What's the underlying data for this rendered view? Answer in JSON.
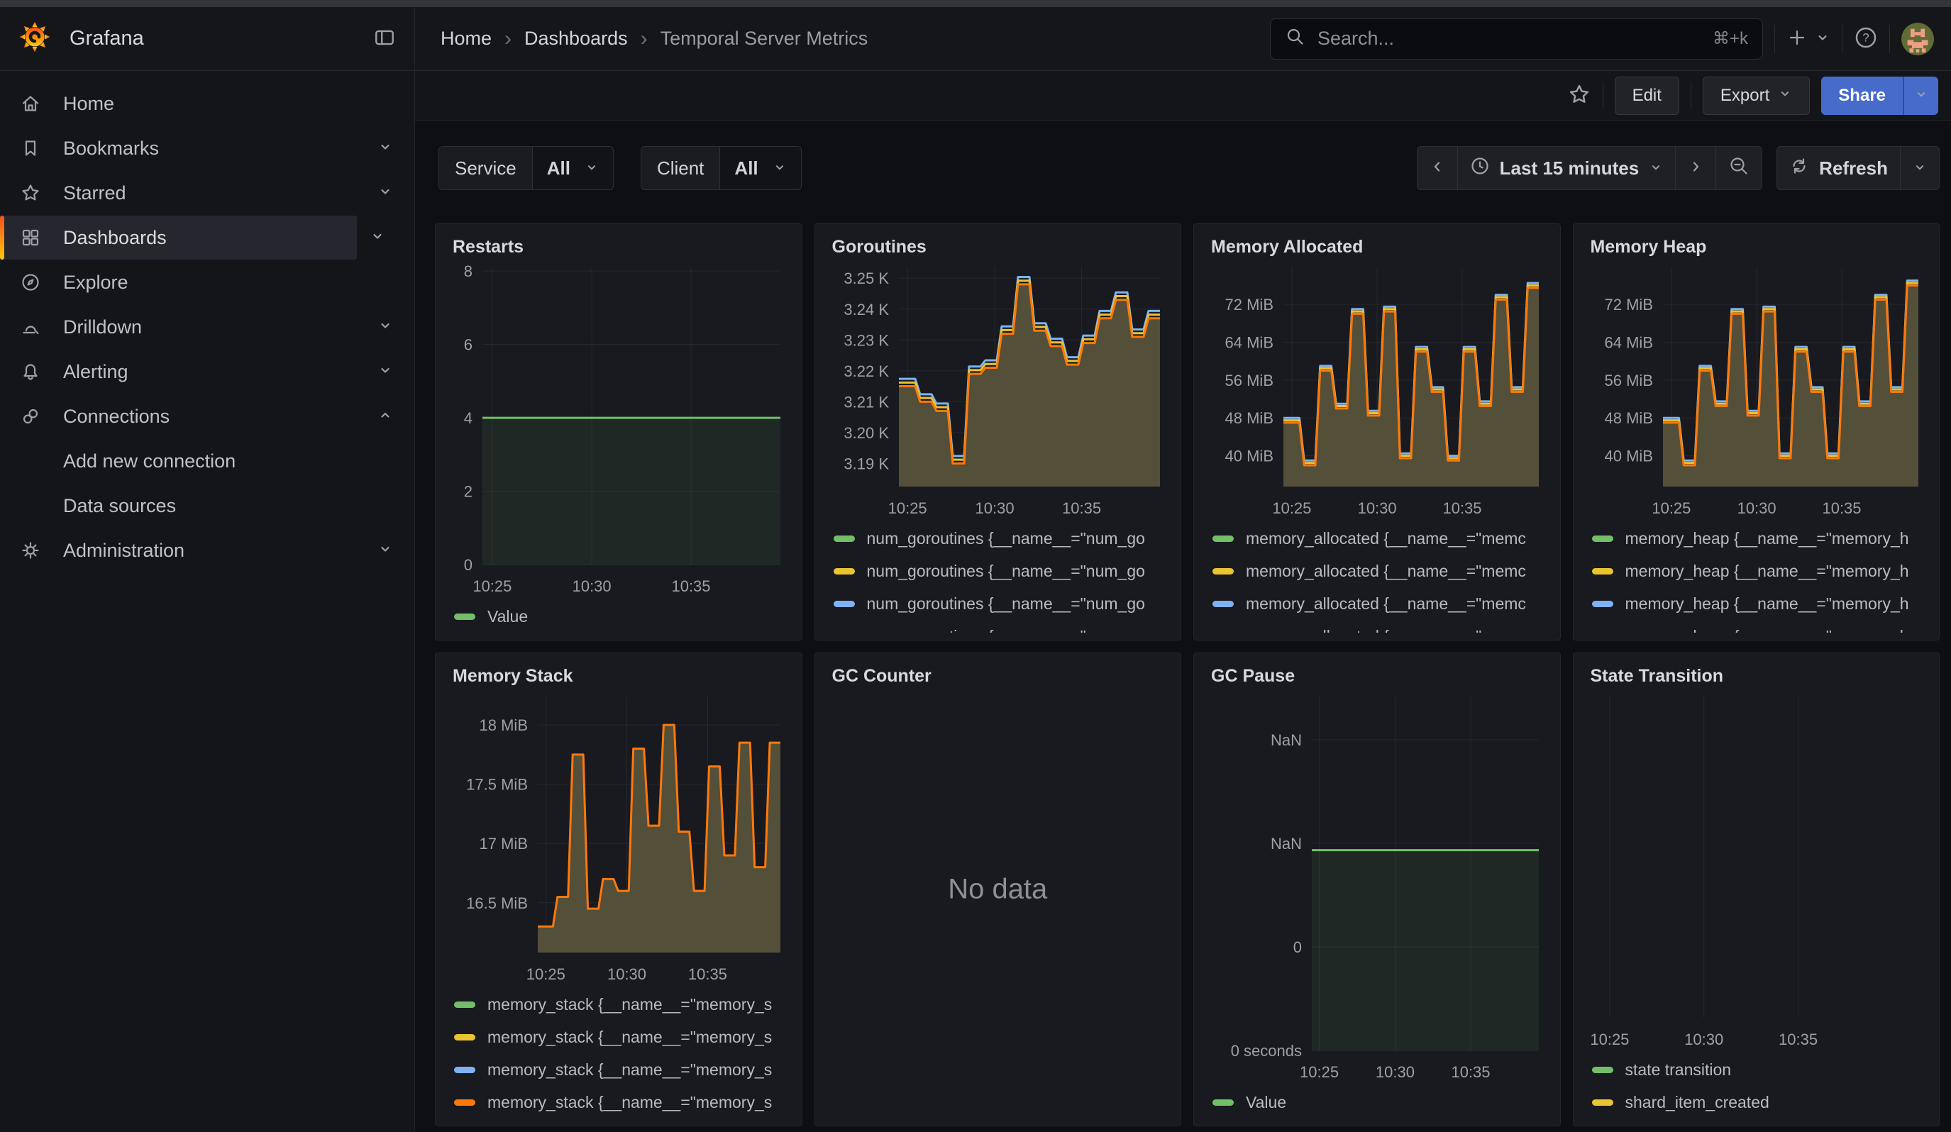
{
  "chrome": {
    "brand": "Grafana",
    "breadcrumbs": [
      "Home",
      "Dashboards",
      "Temporal Server Metrics"
    ],
    "search": {
      "placeholder": "Search...",
      "shortcut": "⌘+k"
    }
  },
  "toolbar": {
    "edit": "Edit",
    "export": "Export",
    "share": "Share"
  },
  "filters": {
    "service_label": "Service",
    "service_value": "All",
    "client_label": "Client",
    "client_value": "All"
  },
  "timebar": {
    "range": "Last 15 minutes",
    "refresh": "Refresh"
  },
  "sidebar": {
    "items": [
      {
        "label": "Home"
      },
      {
        "label": "Bookmarks"
      },
      {
        "label": "Starred"
      },
      {
        "label": "Dashboards"
      },
      {
        "label": "Explore"
      },
      {
        "label": "Drilldown"
      },
      {
        "label": "Alerting"
      },
      {
        "label": "Connections"
      },
      {
        "label": "Add new connection"
      },
      {
        "label": "Data sources"
      },
      {
        "label": "Administration"
      }
    ]
  },
  "colors": {
    "green": "#73BF69",
    "yellow": "#EAC431",
    "blue": "#7EB2F2",
    "orange": "#FF780A",
    "fill_olive": "#544F39",
    "share_blue": "#466BCB"
  },
  "panels": [
    {
      "title": "Restarts",
      "legend": [
        {
          "color": "#73BF69",
          "label": "Value"
        }
      ],
      "chart": {
        "type": "step",
        "gutter": 48,
        "y_min": 0,
        "y_max": 8.1,
        "y_ticks": [
          {
            "v": 0,
            "l": "0"
          },
          {
            "v": 2,
            "l": "2"
          },
          {
            "v": 4,
            "l": "4"
          },
          {
            "v": 6,
            "l": "6"
          },
          {
            "v": 8,
            "l": "8"
          }
        ],
        "x_ticks": [
          {
            "f": 0.033,
            "l": "10:25"
          },
          {
            "f": 0.367,
            "l": "10:30"
          },
          {
            "f": 0.7,
            "l": "10:35"
          }
        ],
        "values": [
          4
        ],
        "series": [
          {
            "color": "#73BF69",
            "width": 3,
            "offset": 0,
            "fill": "rgba(115,191,105,0.09)"
          }
        ]
      }
    },
    {
      "title": "Goroutines",
      "legend": [
        {
          "color": "#73BF69",
          "label": "num_goroutines {__name__=\"num_go"
        },
        {
          "color": "#EAC431",
          "label": "num_goroutines {__name__=\"num_go"
        },
        {
          "color": "#7EB2F2",
          "label": "num_goroutines {__name__=\"num_go"
        },
        {
          "color": "#FF780A",
          "label": "num_goroutines {__name__=\"num_go"
        }
      ],
      "chart": {
        "type": "step",
        "gutter": 100,
        "y_min": 3.1825,
        "y_max": 3.2535,
        "y_ticks": [
          {
            "v": 3.19,
            "l": "3.19 K"
          },
          {
            "v": 3.2,
            "l": "3.20 K"
          },
          {
            "v": 3.21,
            "l": "3.21 K"
          },
          {
            "v": 3.22,
            "l": "3.22 K"
          },
          {
            "v": 3.23,
            "l": "3.23 K"
          },
          {
            "v": 3.24,
            "l": "3.24 K"
          },
          {
            "v": 3.25,
            "l": "3.25 K"
          }
        ],
        "x_ticks": [
          {
            "f": 0.033,
            "l": "10:25"
          },
          {
            "f": 0.367,
            "l": "10:30"
          },
          {
            "f": 0.7,
            "l": "10:35"
          }
        ],
        "values": [
          3.215,
          3.21,
          3.207,
          3.19,
          3.219,
          3.221,
          3.232,
          3.248,
          3.233,
          3.228,
          3.222,
          3.229,
          3.237,
          3.243,
          3.231,
          3.237
        ],
        "series": [
          {
            "color": "#7EB2F2",
            "width": 3,
            "offset": 0.0024
          },
          {
            "color": "#EAC431",
            "width": 3,
            "offset": 0.0012
          },
          {
            "color": "#FF780A",
            "width": 3,
            "offset": 0,
            "fill": "#544F39"
          }
        ]
      }
    },
    {
      "title": "Memory Allocated",
      "legend": [
        {
          "color": "#73BF69",
          "label": "memory_allocated {__name__=\"memc"
        },
        {
          "color": "#EAC431",
          "label": "memory_allocated {__name__=\"memc"
        },
        {
          "color": "#7EB2F2",
          "label": "memory_allocated {__name__=\"memc"
        },
        {
          "color": "#FF780A",
          "label": "memory_allocated {__name__=\"memc"
        }
      ],
      "chart": {
        "type": "step",
        "gutter": 108,
        "y_min": 33.5,
        "y_max": 79.8,
        "y_ticks": [
          {
            "v": 40,
            "l": "40 MiB"
          },
          {
            "v": 48,
            "l": "48 MiB"
          },
          {
            "v": 56,
            "l": "56 MiB"
          },
          {
            "v": 64,
            "l": "64 MiB"
          },
          {
            "v": 72,
            "l": "72 MiB"
          }
        ],
        "x_ticks": [
          {
            "f": 0.033,
            "l": "10:25"
          },
          {
            "f": 0.367,
            "l": "10:30"
          },
          {
            "f": 0.7,
            "l": "10:35"
          }
        ],
        "values": [
          47,
          38,
          58,
          50,
          70,
          48.5,
          70.5,
          39.5,
          62,
          53.5,
          39,
          62,
          50.5,
          73,
          53.5,
          75.5
        ],
        "series": [
          {
            "color": "#7EB2F2",
            "width": 3,
            "offset": 1.0
          },
          {
            "color": "#EAC431",
            "width": 3,
            "offset": 0.5
          },
          {
            "color": "#FF780A",
            "width": 3,
            "offset": 0,
            "fill": "#544F39"
          }
        ]
      }
    },
    {
      "title": "Memory Heap",
      "legend": [
        {
          "color": "#73BF69",
          "label": "memory_heap {__name__=\"memory_h"
        },
        {
          "color": "#EAC431",
          "label": "memory_heap {__name__=\"memory_h"
        },
        {
          "color": "#7EB2F2",
          "label": "memory_heap {__name__=\"memory_h"
        },
        {
          "color": "#FF780A",
          "label": "memory_heap {__name__=\"memory_h"
        }
      ],
      "chart": {
        "type": "step",
        "gutter": 108,
        "y_min": 33.5,
        "y_max": 79.8,
        "y_ticks": [
          {
            "v": 40,
            "l": "40 MiB"
          },
          {
            "v": 48,
            "l": "48 MiB"
          },
          {
            "v": 56,
            "l": "56 MiB"
          },
          {
            "v": 64,
            "l": "64 MiB"
          },
          {
            "v": 72,
            "l": "72 MiB"
          }
        ],
        "x_ticks": [
          {
            "f": 0.033,
            "l": "10:25"
          },
          {
            "f": 0.367,
            "l": "10:30"
          },
          {
            "f": 0.7,
            "l": "10:35"
          }
        ],
        "values": [
          47,
          38,
          58,
          50.5,
          70,
          48.5,
          70.5,
          39.5,
          62,
          53.5,
          39.5,
          62,
          50.5,
          73,
          53.5,
          76
        ],
        "series": [
          {
            "color": "#7EB2F2",
            "width": 3,
            "offset": 1.0
          },
          {
            "color": "#EAC431",
            "width": 3,
            "offset": 0.5
          },
          {
            "color": "#FF780A",
            "width": 3,
            "offset": 0,
            "fill": "#544F39"
          }
        ]
      }
    },
    {
      "title": "Memory Stack",
      "legend": [
        {
          "color": "#73BF69",
          "label": "memory_stack {__name__=\"memory_s"
        },
        {
          "color": "#EAC431",
          "label": "memory_stack {__name__=\"memory_s"
        },
        {
          "color": "#7EB2F2",
          "label": "memory_stack {__name__=\"memory_s"
        },
        {
          "color": "#FF780A",
          "label": "memory_stack {__name__=\"memory_s"
        }
      ],
      "chart": {
        "type": "step",
        "gutter": 126,
        "y_min": 16.08,
        "y_max": 18.24,
        "y_ticks": [
          {
            "v": 16.5,
            "l": "16.5 MiB"
          },
          {
            "v": 17,
            "l": "17 MiB"
          },
          {
            "v": 17.5,
            "l": "17.5 MiB"
          },
          {
            "v": 18,
            "l": "18 MiB"
          }
        ],
        "x_ticks": [
          {
            "f": 0.033,
            "l": "10:25"
          },
          {
            "f": 0.367,
            "l": "10:30"
          },
          {
            "f": 0.7,
            "l": "10:35"
          }
        ],
        "values": [
          16.3,
          16.55,
          17.75,
          16.45,
          16.7,
          16.6,
          17.8,
          17.15,
          18.0,
          17.1,
          16.6,
          17.65,
          16.9,
          17.85,
          16.8,
          17.85
        ],
        "series": [
          {
            "color": "#FF780A",
            "width": 3,
            "offset": 0,
            "fill": "#544F39"
          }
        ]
      }
    },
    {
      "title": "GC Counter",
      "no_data": "No data",
      "legend": [],
      "chart": {
        "type": "none"
      }
    },
    {
      "title": "GC Pause",
      "legend": [
        {
          "color": "#73BF69",
          "label": "Value"
        }
      ],
      "chart": {
        "type": "step",
        "gutter": 148,
        "y_min": 0,
        "y_max": 4.1,
        "y_ticks": [
          {
            "v": 0,
            "l": "0 seconds"
          },
          {
            "v": 1.2,
            "l": "0"
          },
          {
            "v": 2.4,
            "l": "NaN"
          },
          {
            "v": 3.6,
            "l": "NaN"
          }
        ],
        "x_ticks": [
          {
            "f": 0.033,
            "l": "10:25"
          },
          {
            "f": 0.367,
            "l": "10:30"
          },
          {
            "f": 0.7,
            "l": "10:35"
          }
        ],
        "values": [
          2.32
        ],
        "series": [
          {
            "color": "#73BF69",
            "width": 3,
            "offset": 0,
            "fill": "rgba(115,191,105,0.09)"
          }
        ]
      }
    },
    {
      "title": "State Transition",
      "legend": [
        {
          "color": "#73BF69",
          "label": "state transition"
        },
        {
          "color": "#EAC431",
          "label": "shard_item_created"
        }
      ],
      "chart": {
        "type": "empty",
        "gutter": 10,
        "x_ticks": [
          {
            "f": 0.05,
            "l": "10:25"
          },
          {
            "f": 0.34,
            "l": "10:30"
          },
          {
            "f": 0.63,
            "l": "10:35"
          }
        ]
      }
    }
  ]
}
